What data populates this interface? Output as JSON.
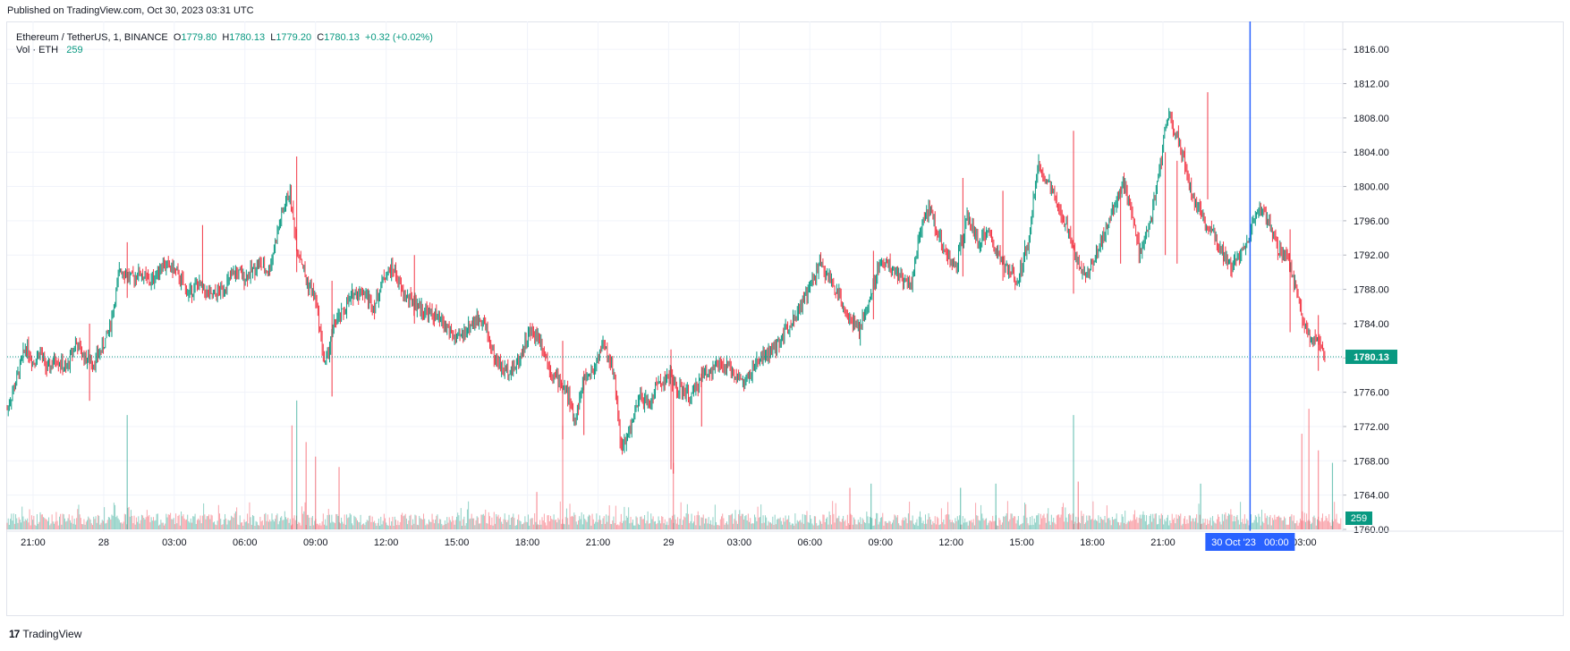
{
  "published": "Published on TradingView.com, Oct 30, 2023 03:31 UTC",
  "legend": {
    "symbol": "Ethereum / TetherUS, 1, BINANCE",
    "o_label": "O",
    "o_value": "1779.80",
    "h_label": "H",
    "h_value": "1780.13",
    "l_label": "L",
    "l_value": "1779.20",
    "c_label": "C",
    "c_value": "1780.13",
    "change": "+0.32 (+0.02%)"
  },
  "volume_legend": {
    "label": "Vol · ETH",
    "value": "259"
  },
  "footer": {
    "brand_mark": "17",
    "brand": "TradingView"
  },
  "colors": {
    "up": "#089981",
    "down": "#f23645",
    "crosshair": "#2962ff",
    "grid": "#f0f3fa",
    "price_line": "#089981"
  },
  "chart_data": {
    "type": "candlestick",
    "title": "Ethereum / TetherUS, 1, BINANCE",
    "ylim": [
      1760,
      1818
    ],
    "y_ticks": [
      "1816.00",
      "1812.00",
      "1808.00",
      "1804.00",
      "1800.00",
      "1796.00",
      "1792.00",
      "1788.00",
      "1784.00",
      "1780.00",
      "1776.00",
      "1772.00",
      "1768.00",
      "1764.00",
      "1760.00"
    ],
    "x_ticks": [
      "21:00",
      "28",
      "03:00",
      "06:00",
      "09:00",
      "12:00",
      "15:00",
      "18:00",
      "21:00",
      "29",
      "03:00",
      "06:00",
      "09:00",
      "12:00",
      "15:00",
      "18:00",
      "21:00",
      "03:00"
    ],
    "x_tick_hours": [
      0,
      3,
      6,
      9,
      12,
      15,
      18,
      21,
      24,
      27,
      30,
      33,
      36,
      39,
      42,
      45,
      48,
      54
    ],
    "x_start_hour": -1.1,
    "x_end_hour": 55.6,
    "crosshair_hour": 51.7,
    "crosshair_label": "30 Oct '23   00:00",
    "last_price": 1780.13,
    "last_price_label": "1780.13",
    "volume_last_label": "259",
    "series": {
      "name": "ETHUSDT price path (hour, price)",
      "hours": [
        -1.1,
        -0.7,
        -0.3,
        0.0,
        0.3,
        0.6,
        1.0,
        1.4,
        1.8,
        2.2,
        2.6,
        3.0,
        3.3,
        3.7,
        4.2,
        4.5,
        5.0,
        5.5,
        6.0,
        6.6,
        7.0,
        7.6,
        8.2,
        8.6,
        9.0,
        9.6,
        10.0,
        10.5,
        10.9,
        11.2,
        11.4,
        11.6,
        12.0,
        12.4,
        12.8,
        13.1,
        13.6,
        14.0,
        14.5,
        14.9,
        15.3,
        15.7,
        16.2,
        16.6,
        17.1,
        17.6,
        18.0,
        18.6,
        19.1,
        19.6,
        20.0,
        20.5,
        21.1,
        21.5,
        22.0,
        22.7,
        23.0,
        23.4,
        23.8,
        24.2,
        24.7,
        25.0,
        25.4,
        25.8,
        26.2,
        26.5,
        26.9,
        27.1,
        27.3,
        27.6,
        28.0,
        28.4,
        29.0,
        29.6,
        30.2,
        30.9,
        31.5,
        32.0,
        32.4,
        32.9,
        33.4,
        33.9,
        34.3,
        34.7,
        35.1,
        35.6,
        36.0,
        36.5,
        37.0,
        37.3,
        37.7,
        38.1,
        38.5,
        38.8,
        39.2,
        39.7,
        40.2,
        40.5,
        40.9,
        41.3,
        41.8,
        42.3,
        42.7,
        43.2,
        43.6,
        44.0,
        44.4,
        44.8,
        45.2,
        45.5,
        45.9,
        46.3,
        46.7,
        47.0,
        47.4,
        47.8,
        48.2,
        48.6,
        49.0,
        49.3,
        49.7,
        50.1,
        50.5,
        50.9,
        51.3,
        51.7,
        52.1,
        52.5,
        52.9,
        53.3,
        53.7,
        54.0,
        54.3,
        54.6,
        54.9,
        55.3,
        55.6
      ],
      "prices": [
        1774.0,
        1777.5,
        1781.5,
        1779.5,
        1780.8,
        1778.5,
        1780.0,
        1778.5,
        1781.8,
        1780.0,
        1779.5,
        1781.5,
        1784.0,
        1790.5,
        1789.2,
        1790.0,
        1788.8,
        1791.0,
        1790.3,
        1787.5,
        1788.6,
        1787.0,
        1788.5,
        1790.0,
        1789.4,
        1791.0,
        1790.0,
        1796.0,
        1799.5,
        1793.0,
        1791.5,
        1789.0,
        1787.0,
        1779.0,
        1784.0,
        1785.0,
        1787.5,
        1787.8,
        1786.0,
        1789.5,
        1790.5,
        1787.5,
        1786.4,
        1785.5,
        1784.8,
        1783.5,
        1782.0,
        1784.0,
        1784.8,
        1780.0,
        1778.5,
        1779.0,
        1783.0,
        1782.5,
        1778.5,
        1776.0,
        1772.5,
        1777.5,
        1778.5,
        1781.8,
        1778.0,
        1769.0,
        1772.0,
        1775.5,
        1774.5,
        1777.0,
        1777.5,
        1778.0,
        1776.5,
        1776.0,
        1775.5,
        1778.0,
        1779.0,
        1778.8,
        1777.0,
        1780.0,
        1781.0,
        1783.5,
        1785.0,
        1787.5,
        1791.0,
        1789.0,
        1787.0,
        1784.5,
        1783.0,
        1787.5,
        1791.5,
        1790.5,
        1789.0,
        1788.5,
        1795.0,
        1797.5,
        1794.0,
        1792.0,
        1790.5,
        1796.5,
        1793.0,
        1795.0,
        1792.5,
        1790.5,
        1789.0,
        1794.0,
        1802.5,
        1800.0,
        1797.0,
        1795.0,
        1791.0,
        1789.8,
        1792.5,
        1794.5,
        1797.5,
        1800.5,
        1797.0,
        1792.0,
        1795.0,
        1801.0,
        1808.5,
        1806.0,
        1802.0,
        1798.5,
        1796.0,
        1795.0,
        1792.5,
        1790.5,
        1792.5,
        1794.5,
        1797.5,
        1796.0,
        1792.5,
        1791.5,
        1787.5,
        1783.5,
        1782.5,
        1781.5,
        1780.1
      ],
      "spikes": [
        {
          "hour": 2.4,
          "high": 1784.0,
          "low": 1775.0
        },
        {
          "hour": 4.0,
          "high": 1793.5,
          "low": 1787.0
        },
        {
          "hour": 7.2,
          "high": 1795.5,
          "low": 1787.5
        },
        {
          "hour": 11.2,
          "high": 1803.5,
          "low": 1790.0
        },
        {
          "hour": 12.7,
          "high": 1789.0,
          "low": 1775.5
        },
        {
          "hour": 16.2,
          "high": 1792.0,
          "low": 1784.0
        },
        {
          "hour": 22.5,
          "high": 1782.0,
          "low": 1770.5
        },
        {
          "hour": 23.4,
          "high": 1778.5,
          "low": 1771.0
        },
        {
          "hour": 27.1,
          "high": 1781.0,
          "low": 1767.0
        },
        {
          "hour": 27.2,
          "high": 1778.0,
          "low": 1766.5
        },
        {
          "hour": 28.4,
          "high": 1779.0,
          "low": 1772.0
        },
        {
          "hour": 35.7,
          "high": 1792.5,
          "low": 1784.5
        },
        {
          "hour": 39.5,
          "high": 1801.0,
          "low": 1789.5
        },
        {
          "hour": 41.2,
          "high": 1799.5,
          "low": 1789.0
        },
        {
          "hour": 44.2,
          "high": 1806.5,
          "low": 1787.5
        },
        {
          "hour": 46.2,
          "high": 1800.0,
          "low": 1791.0
        },
        {
          "hour": 48.1,
          "high": 1804.0,
          "low": 1792.0
        },
        {
          "hour": 48.6,
          "high": 1803.0,
          "low": 1791.0
        },
        {
          "hour": 49.9,
          "high": 1811.0,
          "low": 1798.5
        },
        {
          "hour": 53.4,
          "high": 1795.0,
          "low": 1783.0
        },
        {
          "hour": 54.6,
          "high": 1785.0,
          "low": 1778.5
        }
      ]
    },
    "volume": {
      "name": "Vol · ETH",
      "spikes": [
        {
          "hour": 4.0,
          "value": 0.55,
          "dir": "up"
        },
        {
          "hour": 11.0,
          "value": 0.5,
          "dir": "down"
        },
        {
          "hour": 11.2,
          "value": 0.62,
          "dir": "up"
        },
        {
          "hour": 11.6,
          "value": 0.42,
          "dir": "down"
        },
        {
          "hour": 12.0,
          "value": 0.35,
          "dir": "down"
        },
        {
          "hour": 13.0,
          "value": 0.3,
          "dir": "down"
        },
        {
          "hour": 21.4,
          "value": 0.18,
          "dir": "down"
        },
        {
          "hour": 22.5,
          "value": 0.5,
          "dir": "down"
        },
        {
          "hour": 27.2,
          "value": 0.32,
          "dir": "down"
        },
        {
          "hour": 34.7,
          "value": 0.2,
          "dir": "down"
        },
        {
          "hour": 35.6,
          "value": 0.22,
          "dir": "up"
        },
        {
          "hour": 39.4,
          "value": 0.2,
          "dir": "up"
        },
        {
          "hour": 40.9,
          "value": 0.22,
          "dir": "up"
        },
        {
          "hour": 44.2,
          "value": 0.55,
          "dir": "up"
        },
        {
          "hour": 44.4,
          "value": 0.23,
          "dir": "down"
        },
        {
          "hour": 49.6,
          "value": 0.22,
          "dir": "up"
        },
        {
          "hour": 53.9,
          "value": 0.46,
          "dir": "down"
        },
        {
          "hour": 54.2,
          "value": 0.58,
          "dir": "down"
        },
        {
          "hour": 54.6,
          "value": 0.38,
          "dir": "down"
        },
        {
          "hour": 55.2,
          "value": 0.32,
          "dir": "up"
        }
      ]
    }
  }
}
